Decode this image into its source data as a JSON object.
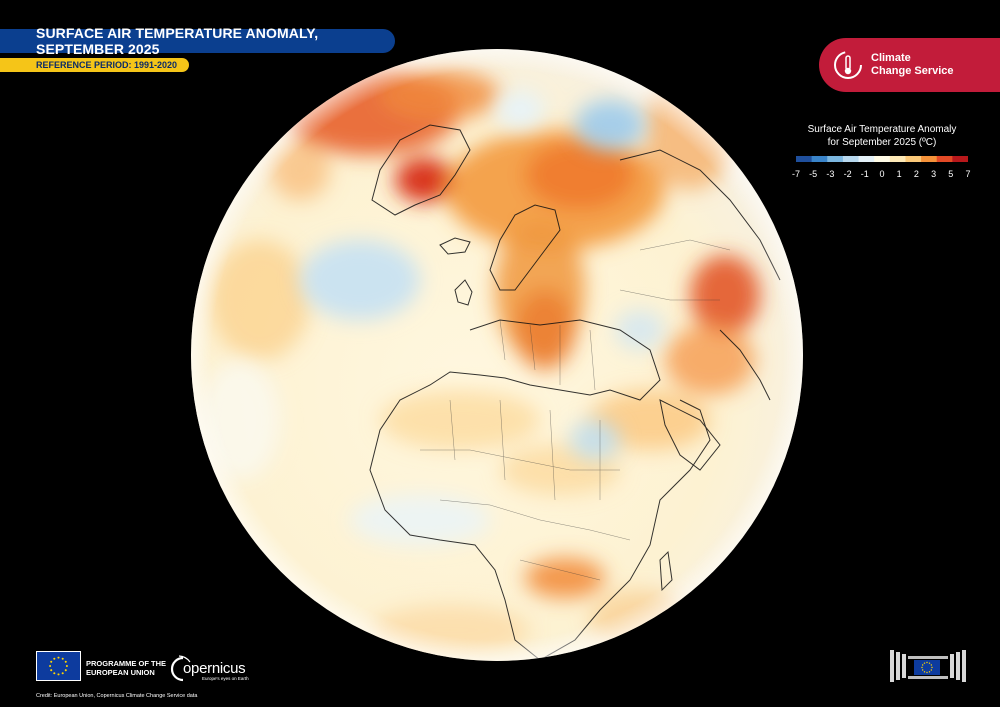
{
  "header": {
    "title": "SURFACE AIR TEMPERATURE ANOMALY, SEPTEMBER 2025",
    "reference": "REFERENCE PERIOD: 1991-2020"
  },
  "brand": {
    "service_line1": "Climate",
    "service_line2": "Change Service",
    "accent": "#c21c3a",
    "title_blue": "#0b3f8f",
    "ref_yellow": "#f5c518"
  },
  "legend": {
    "title_line1": "Surface Air Temperature Anomaly",
    "title_line2": "for September 2025 (ºC)",
    "ticks": [
      "-7",
      "-5",
      "-3",
      "-2",
      "-1",
      "0",
      "1",
      "2",
      "3",
      "5",
      "7"
    ],
    "colors": [
      "#1f4f9c",
      "#3a84c9",
      "#7cb7e0",
      "#b7d8ee",
      "#e4f1f8",
      "#fffbe6",
      "#fde9b6",
      "#fbc979",
      "#f5923a",
      "#e34a26",
      "#b8181b"
    ]
  },
  "footer": {
    "programme_line1": "PROGRAMME OF THE",
    "programme_line2": "EUROPEAN UNION",
    "copernicus": "opernicus",
    "copernicus_sub": "Europe's eyes on Earth",
    "credit": "Credit: European Union, Copernicus Climate Change Service data"
  },
  "icons": {
    "c3s": "thermometer-globe-icon",
    "eu": "eu-flag-icon",
    "ec": "european-commission-logo-icon"
  }
}
